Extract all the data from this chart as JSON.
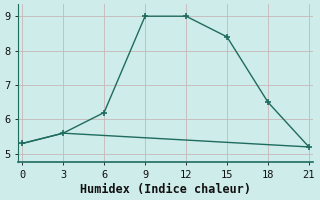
{
  "xlabel": "Humidex (Indice chaleur)",
  "bg_color": "#ceecea",
  "grid_color": "#c8b8b8",
  "line_color": "#1f6b5e",
  "spine_color": "#1f6b5e",
  "x_ticks": [
    0,
    3,
    6,
    9,
    12,
    15,
    18,
    21
  ],
  "y_ticks": [
    5,
    6,
    7,
    8,
    9
  ],
  "xlim": [
    -0.3,
    21.3
  ],
  "ylim": [
    4.75,
    9.35
  ],
  "line1_x": [
    0,
    3,
    6,
    9,
    12,
    15,
    18,
    21
  ],
  "line1_y": [
    5.3,
    5.6,
    6.2,
    9.0,
    9.0,
    8.4,
    6.5,
    5.2
  ],
  "line2_x": [
    0,
    3,
    21
  ],
  "line2_y": [
    5.3,
    5.6,
    5.2
  ],
  "marker": "+",
  "marker_size": 5,
  "marker_ew": 1.2,
  "line_width": 1.0,
  "tick_fontsize": 7.5,
  "label_fontsize": 8.5
}
